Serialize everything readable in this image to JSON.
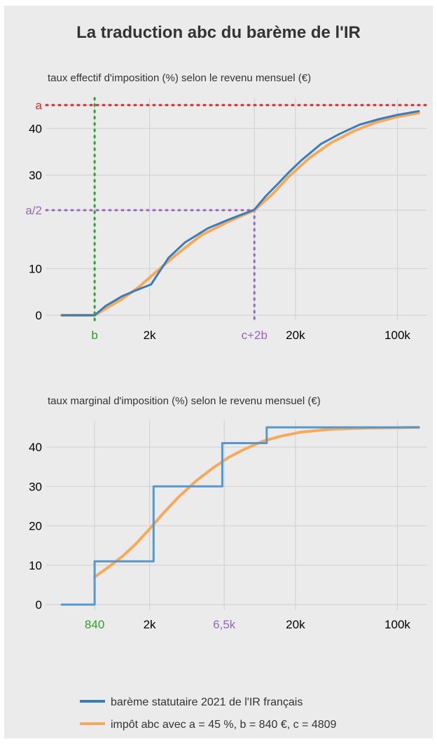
{
  "title": "La traduction abc du barème de l'IR",
  "chart_data": [
    {
      "type": "line",
      "title": "taux effectif d'imposition (%) selon le revenu mensuel (€)",
      "xscale": "log",
      "xlim": [
        400,
        160000
      ],
      "ylim": [
        0,
        45
      ],
      "grid": true,
      "x_ticks": [
        {
          "value": 840,
          "label": "b",
          "color": "#2ca02c"
        },
        {
          "value": 2000,
          "label": "2k",
          "color": "#000000"
        },
        {
          "value": 10458,
          "label": "c+2b",
          "color": "#9467bd"
        },
        {
          "value": 20000,
          "label": "20k",
          "color": "#000000"
        },
        {
          "value": 100000,
          "label": "100k",
          "color": "#000000"
        }
      ],
      "y_ticks": [
        {
          "value": 0,
          "label": "0",
          "color": "#000000"
        },
        {
          "value": 10,
          "label": "10",
          "color": "#000000"
        },
        {
          "value": 22.5,
          "label": "a/2",
          "color": "#9467bd"
        },
        {
          "value": 30,
          "label": "30",
          "color": "#000000"
        },
        {
          "value": 40,
          "label": "40",
          "color": "#000000"
        },
        {
          "value": 45,
          "label": "a",
          "color": "#d62728"
        }
      ],
      "reference_lines": [
        {
          "type": "h",
          "y": 45,
          "color": "#d62728"
        },
        {
          "type": "v",
          "x": 840,
          "color": "#2ca02c"
        },
        {
          "type": "h",
          "y": 22.5,
          "x_to": 10458,
          "color": "#9467bd"
        },
        {
          "type": "v",
          "x": 10458,
          "y_to": 22.5,
          "color": "#9467bd"
        }
      ],
      "series": [
        {
          "name": "barème statutaire 2021 de l'IR français",
          "color": "#3a7db8",
          "points": [
            [
              500,
              0
            ],
            [
              840,
              0
            ],
            [
              1000,
              2
            ],
            [
              1300,
              4.1
            ],
            [
              1600,
              5.3
            ],
            [
              2050,
              6.6
            ],
            [
              2300,
              9
            ],
            [
              2700,
              12.3
            ],
            [
              3500,
              15.6
            ],
            [
              5000,
              18.6
            ],
            [
              7000,
              20.5
            ],
            [
              10458,
              22.6
            ],
            [
              12500,
              25.5
            ],
            [
              15000,
              28
            ],
            [
              18000,
              30.6
            ],
            [
              22000,
              33.2
            ],
            [
              30000,
              36.7
            ],
            [
              40000,
              38.8
            ],
            [
              55000,
              40.8
            ],
            [
              75000,
              42
            ],
            [
              100000,
              42.9
            ],
            [
              140000,
              43.7
            ]
          ]
        },
        {
          "name": "impôt abc avec a = 45 %, b = 840 €, c = 4809",
          "color": "#f7a95a",
          "points": [
            [
              500,
              0
            ],
            [
              840,
              0
            ],
            [
              1000,
              1.4
            ],
            [
              1300,
              3.5
            ],
            [
              1700,
              6.1
            ],
            [
              2200,
              9.2
            ],
            [
              3000,
              12.8
            ],
            [
              4500,
              17.1
            ],
            [
              7000,
              20.1
            ],
            [
              10458,
              22.5
            ],
            [
              14000,
              26
            ],
            [
              18000,
              29.7
            ],
            [
              25000,
              33.7
            ],
            [
              35000,
              36.9
            ],
            [
              50000,
              39.4
            ],
            [
              70000,
              41.2
            ],
            [
              100000,
              42.5
            ],
            [
              140000,
              43.3
            ]
          ]
        }
      ]
    },
    {
      "type": "line",
      "title": "taux marginal d'imposition (%) selon le revenu mensuel (€)",
      "xscale": "log",
      "xlim": [
        400,
        160000
      ],
      "ylim": [
        0,
        45
      ],
      "grid": true,
      "x_ticks": [
        {
          "value": 840,
          "label": "840",
          "color": "#2ca02c"
        },
        {
          "value": 2000,
          "label": "2k",
          "color": "#000000"
        },
        {
          "value": 6500,
          "label": "6,5k",
          "color": "#9467bd"
        },
        {
          "value": 20000,
          "label": "20k",
          "color": "#000000"
        },
        {
          "value": 100000,
          "label": "100k",
          "color": "#000000"
        }
      ],
      "y_ticks": [
        {
          "value": 0,
          "label": "0",
          "color": "#000000"
        },
        {
          "value": 10,
          "label": "10",
          "color": "#000000"
        },
        {
          "value": 20,
          "label": "20",
          "color": "#000000"
        },
        {
          "value": 30,
          "label": "30",
          "color": "#000000"
        },
        {
          "value": 40,
          "label": "40",
          "color": "#000000"
        }
      ],
      "series": [
        {
          "name": "barème statutaire 2021 de l'IR français",
          "color": "#5a97c9",
          "points": [
            [
              500,
              0
            ],
            [
              840,
              0
            ],
            [
              840,
              11
            ],
            [
              2130,
              11
            ],
            [
              2130,
              30
            ],
            [
              6300,
              30
            ],
            [
              6300,
              41
            ],
            [
              12700,
              41
            ],
            [
              12700,
              45
            ],
            [
              140000,
              45
            ]
          ]
        },
        {
          "name": "impôt abc avec a = 45 %, b = 840 €, c = 4809",
          "color": "#f7a95a",
          "points": [
            [
              840,
              7
            ],
            [
              1000,
              9
            ],
            [
              1300,
              12.2
            ],
            [
              1600,
              15.3
            ],
            [
              2000,
              19.2
            ],
            [
              2500,
              23.3
            ],
            [
              3200,
              27.5
            ],
            [
              4200,
              31.5
            ],
            [
              5500,
              34.8
            ],
            [
              7000,
              37.4
            ],
            [
              9000,
              39.5
            ],
            [
              12000,
              41.5
            ],
            [
              16000,
              42.8
            ],
            [
              22000,
              43.8
            ],
            [
              35000,
              44.5
            ],
            [
              60000,
              44.8
            ],
            [
              140000,
              45
            ]
          ]
        }
      ]
    }
  ],
  "legend": [
    {
      "label": "barème statutaire 2021 de l'IR français",
      "color": "#3a7db8"
    },
    {
      "label": "impôt abc avec a = 45 %, b = 840 €, c = 4809",
      "color": "#f7a95a"
    }
  ]
}
